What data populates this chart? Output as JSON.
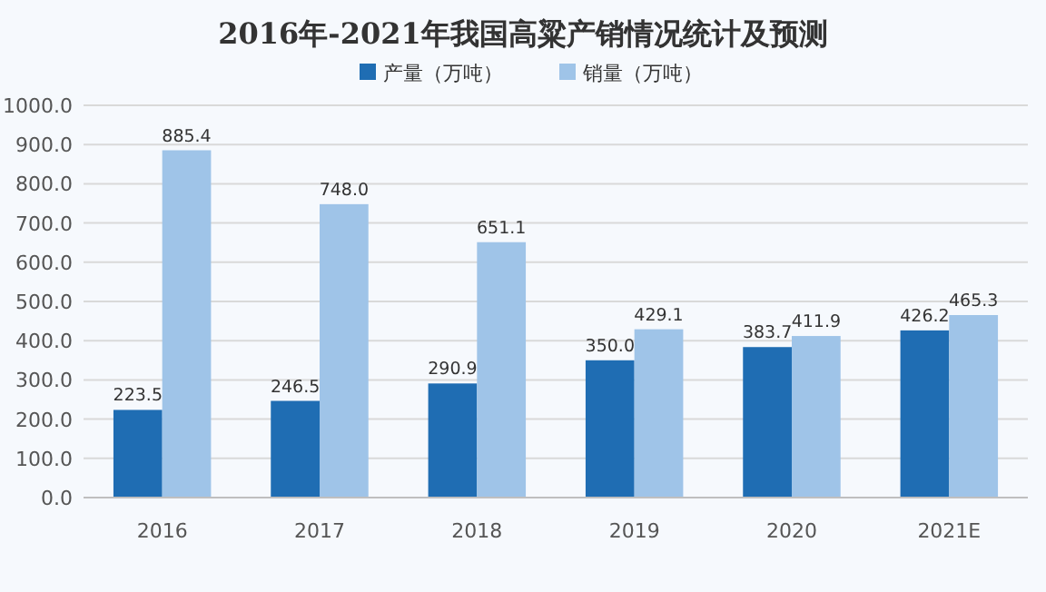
{
  "chart_data": {
    "type": "bar",
    "title": "2016年-2021年我国高粱产销情况统计及预测",
    "categories": [
      "2016",
      "2017",
      "2018",
      "2019",
      "2020",
      "2021E"
    ],
    "series": [
      {
        "name": "产量（万吨）",
        "color": "#1f6db3",
        "values": [
          223.5,
          246.5,
          290.9,
          350.0,
          383.7,
          426.2
        ],
        "value_labels": [
          "223.5",
          "246.5",
          "290.9",
          "350.0",
          "383.7",
          "426.2"
        ]
      },
      {
        "name": "销量（万吨）",
        "color": "#9fc4e8",
        "values": [
          885.4,
          748.0,
          651.1,
          429.1,
          411.9,
          465.3
        ],
        "value_labels": [
          "885.4",
          "748.0",
          "651.1",
          "429.1",
          "411.9",
          "465.3"
        ]
      }
    ],
    "ylim": [
      0,
      1000
    ],
    "yticks": [
      {
        "value": 0,
        "label": "0.0"
      },
      {
        "value": 100,
        "label": "100.0"
      },
      {
        "value": 200,
        "label": "200.0"
      },
      {
        "value": 300,
        "label": "300.0"
      },
      {
        "value": 400,
        "label": "400.0"
      },
      {
        "value": 500,
        "label": "500.0"
      },
      {
        "value": 600,
        "label": "600.0"
      },
      {
        "value": 700,
        "label": "700.0"
      },
      {
        "value": 800,
        "label": "800.0"
      },
      {
        "value": 900,
        "label": "900.0"
      },
      {
        "value": 1000,
        "label": "1000.0"
      }
    ],
    "grid": "y",
    "legend": "top"
  }
}
